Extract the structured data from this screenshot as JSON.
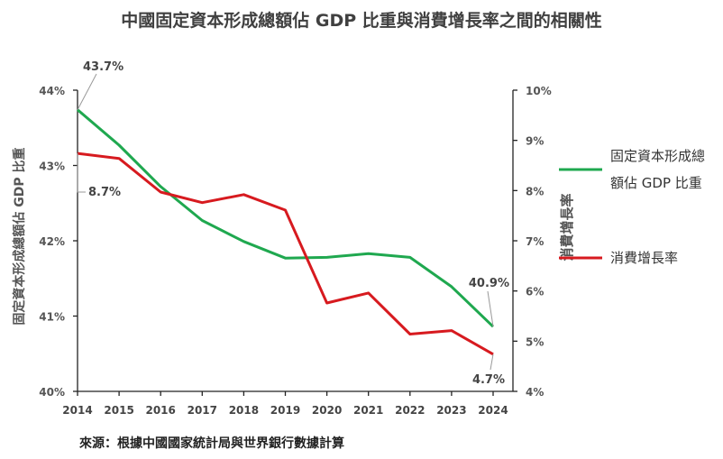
{
  "title": "中國固定資本形成總額佔 GDP 比重與消費增長率之間的相關性",
  "source": "來源：根據中國國家統計局與世界銀行數據計算",
  "chart_data": {
    "type": "line",
    "title": "中國固定資本形成總額佔 GDP 比重與消費增長率之間的相關性",
    "categories": [
      "2014",
      "2015",
      "2016",
      "2017",
      "2018",
      "2019",
      "2020",
      "2021",
      "2022",
      "2023",
      "2024"
    ],
    "ylabel": "固定資本形成總額佔 GDP 比重",
    "ylabel_right": "消費增長率",
    "ylim": [
      40,
      44
    ],
    "ylim_right": [
      4,
      10
    ],
    "yticks": [
      "40%",
      "41%",
      "42%",
      "43%",
      "44%"
    ],
    "yticks_right": [
      "4%",
      "5%",
      "6%",
      "7%",
      "8%",
      "9%",
      "10%"
    ],
    "grid": false,
    "legend": "right",
    "series": [
      {
        "name": "固定資本形成總額佔 GDP 比重",
        "axis": "left",
        "color": "#1fa84f",
        "values": [
          43.74,
          43.27,
          42.72,
          42.27,
          41.99,
          41.77,
          41.78,
          41.83,
          41.78,
          41.39,
          40.86
        ],
        "labels": {
          "first": "43.7%",
          "last": "40.9%"
        }
      },
      {
        "name": "消費增長率",
        "axis": "right",
        "color": "#d71a1f",
        "values": [
          8.74,
          8.64,
          7.97,
          7.76,
          7.92,
          7.61,
          5.76,
          5.96,
          5.14,
          5.21,
          4.74
        ],
        "labels": {
          "first": "8.7%",
          "last": "4.7%"
        }
      }
    ]
  }
}
